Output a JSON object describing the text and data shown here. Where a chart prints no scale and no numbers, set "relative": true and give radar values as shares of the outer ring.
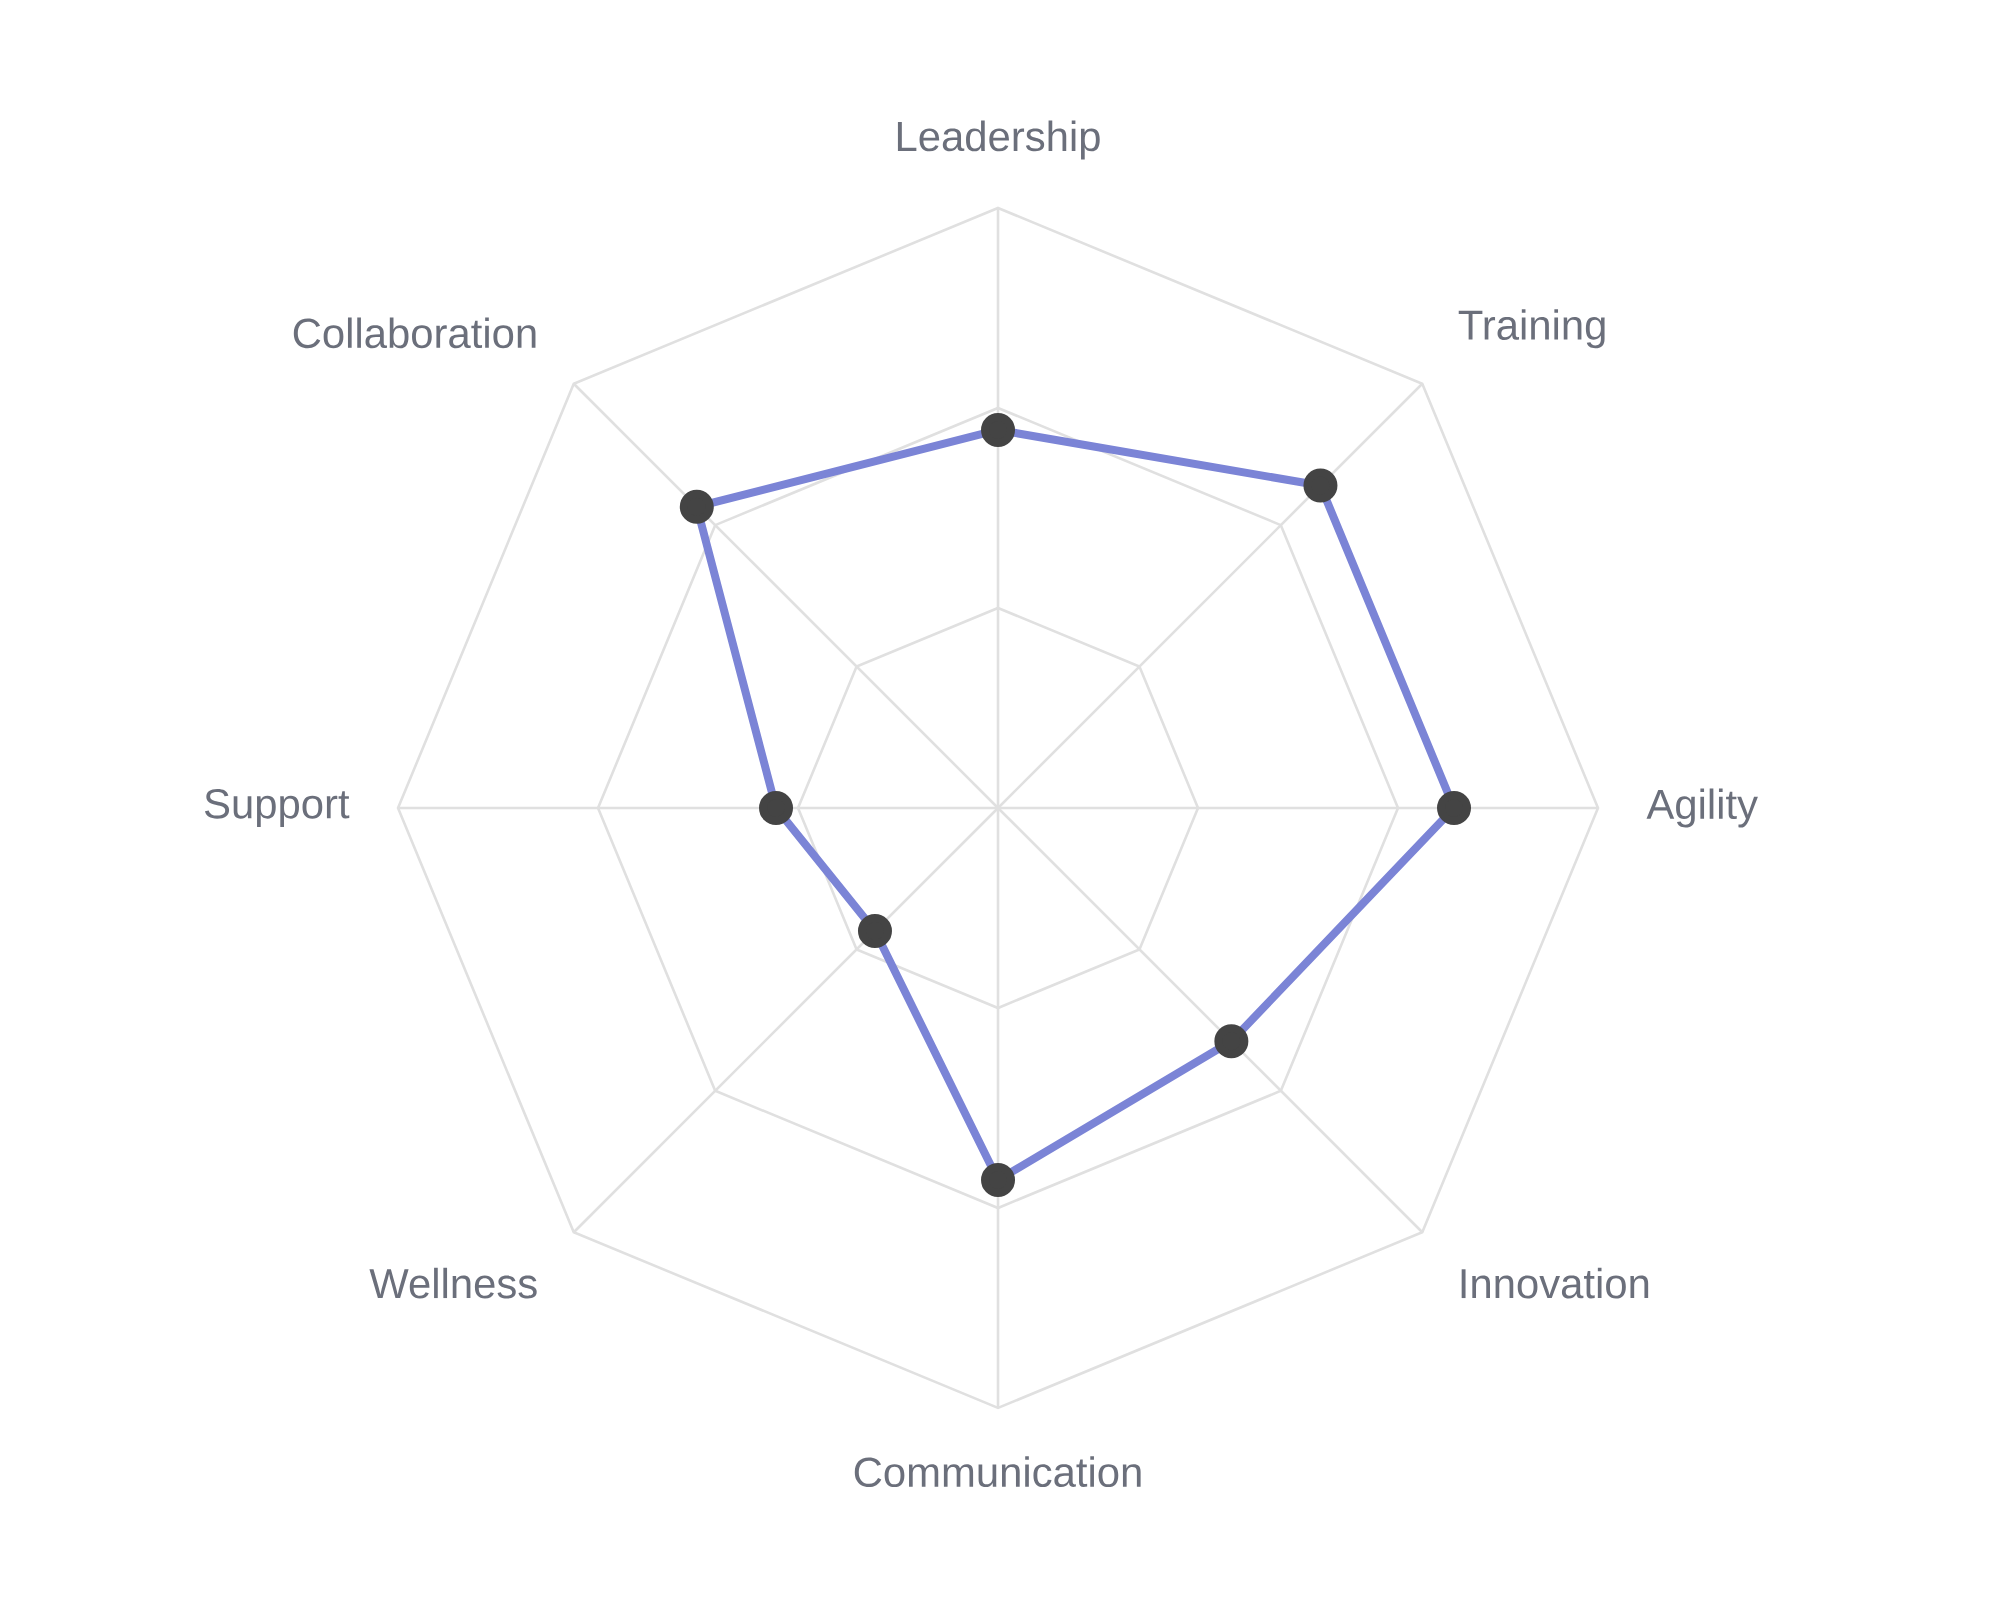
{
  "chart_data": {
    "type": "radar",
    "relative": true,
    "grid": true,
    "marker": "circle",
    "line_style": "solid",
    "categories": [
      "Leadership",
      "Training",
      "Agility",
      "Innovation",
      "Communication",
      "Wellness",
      "Support",
      "Collaboration"
    ],
    "series": [
      {
        "color": "#7b84d6",
        "values": [
          0.63,
          0.76,
          0.76,
          0.55,
          0.62,
          0.29,
          0.37,
          0.71
        ]
      }
    ]
  }
}
